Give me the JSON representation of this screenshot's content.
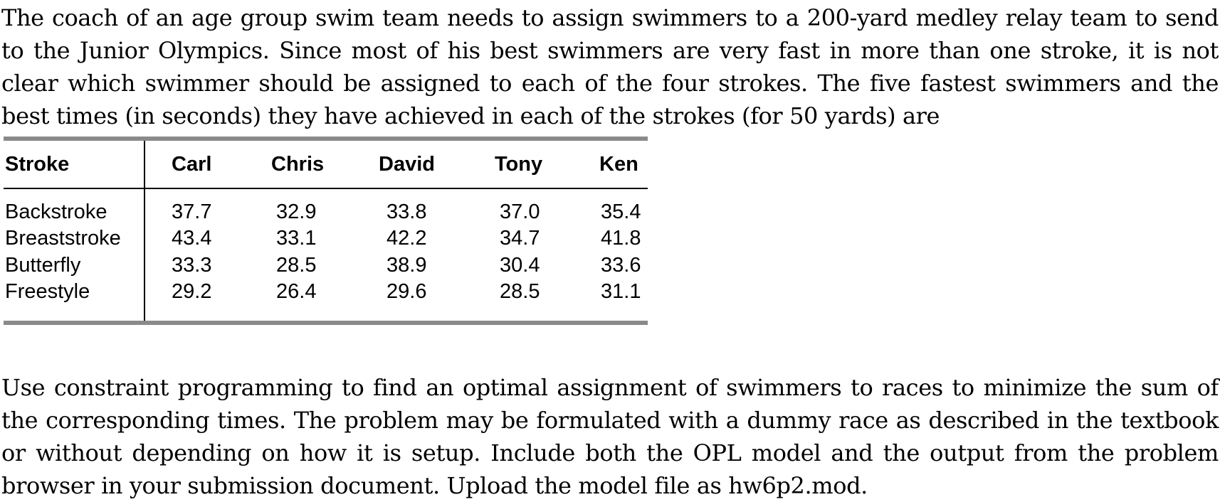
{
  "intro_text": "The coach of an age group swim team needs to assign swimmers to a 200-yard medley relay team to send to the Junior Olympics. Since most of his best swimmers are very fast in more than one stroke, it is not clear which swimmer should be assigned to each of the four strokes. The five fastest swimmers and the best times (in seconds) they have achieved in each of the strokes (for 50 yards) are",
  "table": {
    "headers": [
      "Stroke",
      "Carl",
      "Chris",
      "David",
      "Tony",
      "Ken"
    ],
    "rows": [
      [
        "Backstroke",
        "37.7",
        "32.9",
        "33.8",
        "37.0",
        "35.4"
      ],
      [
        "Breaststroke",
        "43.4",
        "33.1",
        "42.2",
        "34.7",
        "41.8"
      ],
      [
        "Butterfly",
        "33.3",
        "28.5",
        "38.9",
        "30.4",
        "33.6"
      ],
      [
        "Freestyle",
        "29.2",
        "26.4",
        "29.6",
        "28.5",
        "31.1"
      ]
    ]
  },
  "instructions_text": "Use constraint programming to find an optimal assignment of swimmers to races to minimize the sum of the corresponding times. The problem may be formulated with a dummy race as described in the textbook or without depending on how it is setup. Include both the OPL model and the output from the problem browser in your submission document. Upload the model file as hw6p2.mod."
}
